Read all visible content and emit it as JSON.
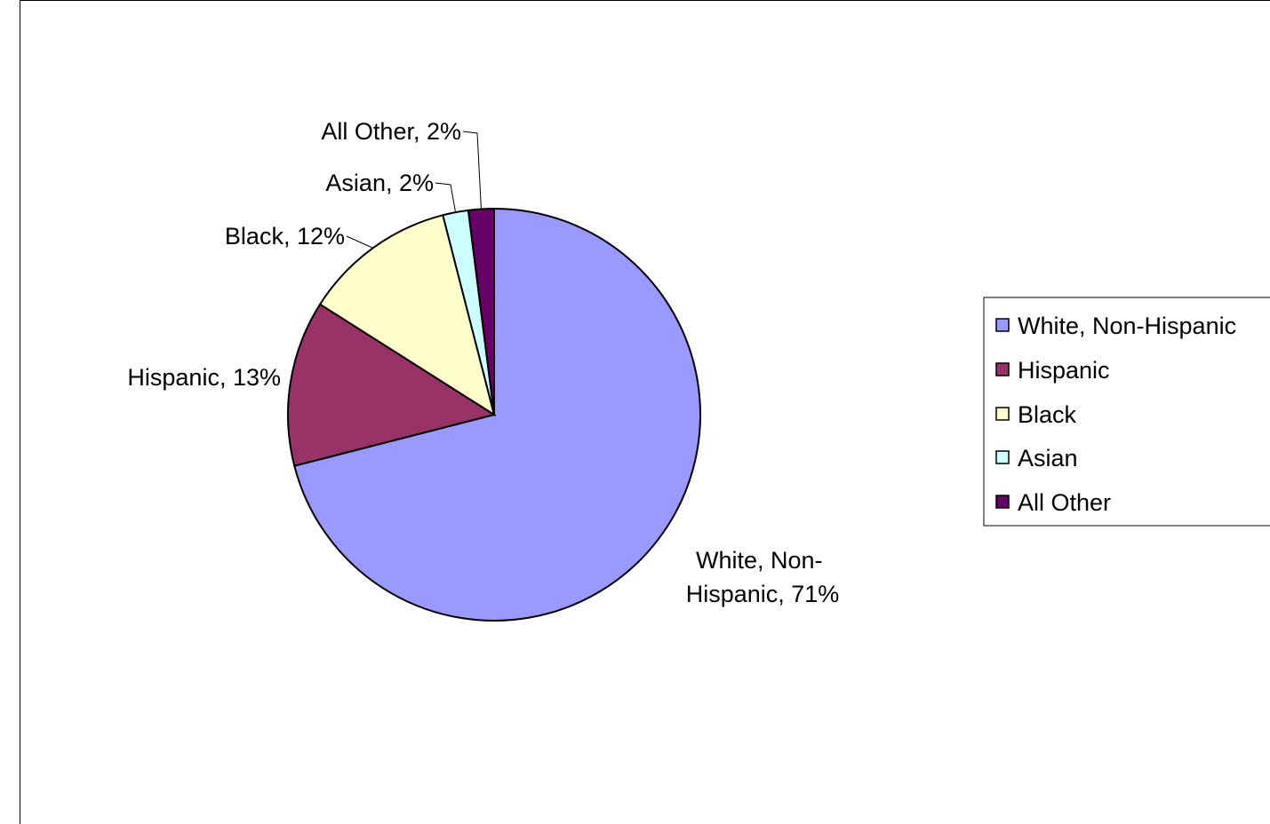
{
  "chart_data": {
    "type": "pie",
    "categories": [
      "White, Non-Hispanic",
      "Hispanic",
      "Black",
      "Asian",
      "All Other"
    ],
    "values": [
      71,
      13,
      12,
      2,
      2
    ],
    "unit": "%",
    "colors": [
      "#9999ff",
      "#993366",
      "#ffffcc",
      "#ccffff",
      "#660066"
    ],
    "data_labels": [
      {
        "lines": [
          "White, Non-",
          "Hispanic, 71%"
        ]
      },
      {
        "lines": [
          "Hispanic, 13%"
        ]
      },
      {
        "lines": [
          "Black, 12%"
        ]
      },
      {
        "lines": [
          "Asian, 2%"
        ]
      },
      {
        "lines": [
          "All Other, 2%"
        ]
      }
    ],
    "legend": {
      "position": "right",
      "entries": [
        "White, Non-Hispanic",
        "Hispanic",
        "Black",
        "Asian",
        "All Other"
      ]
    }
  }
}
